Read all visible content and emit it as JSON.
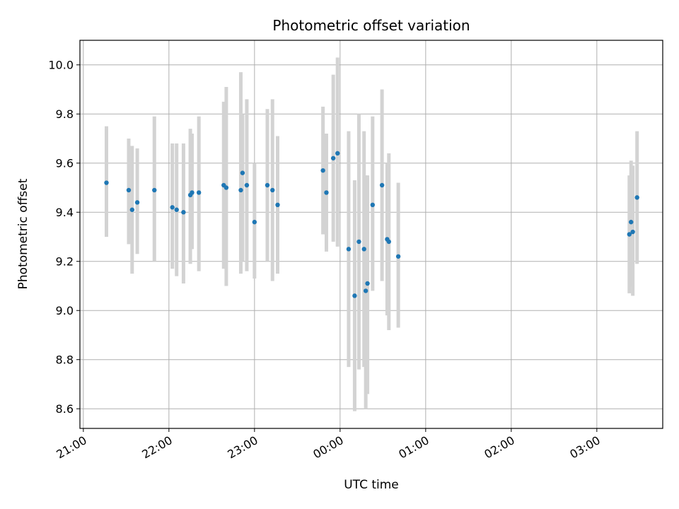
{
  "chart_data": {
    "type": "scatter",
    "title": "Photometric offset variation",
    "xlabel": "UTC time",
    "ylabel": "Photometric offset",
    "x_tick_labels": [
      "21:00",
      "22:00",
      "23:00",
      "00:00",
      "01:00",
      "02:00",
      "03:00"
    ],
    "x_tick_hours": [
      0,
      1,
      2,
      3,
      4,
      5,
      6
    ],
    "xlim_hours_since_21": [
      -0.04,
      6.77
    ],
    "y_ticks": [
      8.6,
      8.8,
      9.0,
      9.2,
      9.4,
      9.6,
      9.8,
      10.0
    ],
    "y_tick_labels": [
      "8.6",
      "8.8",
      "9.0",
      "9.2",
      "9.4",
      "9.6",
      "9.8",
      "10.0"
    ],
    "ylim": [
      8.52,
      10.1
    ],
    "grid": true,
    "colors": {
      "points": "#1f77b4",
      "errorbars": "#d3d3d3",
      "grid": "#b0b0b0"
    },
    "points": [
      {
        "t": 0.27,
        "y": 9.52,
        "lo": 9.3,
        "hi": 9.75
      },
      {
        "t": 0.53,
        "y": 9.49,
        "lo": 9.27,
        "hi": 9.7
      },
      {
        "t": 0.57,
        "y": 9.41,
        "lo": 9.15,
        "hi": 9.67
      },
      {
        "t": 0.63,
        "y": 9.44,
        "lo": 9.23,
        "hi": 9.66
      },
      {
        "t": 0.83,
        "y": 9.49,
        "lo": 9.2,
        "hi": 9.79
      },
      {
        "t": 1.04,
        "y": 9.42,
        "lo": 9.17,
        "hi": 9.68
      },
      {
        "t": 1.09,
        "y": 9.41,
        "lo": 9.14,
        "hi": 9.68
      },
      {
        "t": 1.17,
        "y": 9.4,
        "lo": 9.11,
        "hi": 9.68
      },
      {
        "t": 1.25,
        "y": 9.47,
        "lo": 9.19,
        "hi": 9.74
      },
      {
        "t": 1.27,
        "y": 9.48,
        "lo": 9.25,
        "hi": 9.72
      },
      {
        "t": 1.35,
        "y": 9.48,
        "lo": 9.16,
        "hi": 9.79
      },
      {
        "t": 1.64,
        "y": 9.51,
        "lo": 9.17,
        "hi": 9.85
      },
      {
        "t": 1.67,
        "y": 9.5,
        "lo": 9.1,
        "hi": 9.91
      },
      {
        "t": 1.84,
        "y": 9.49,
        "lo": 9.15,
        "hi": 9.97
      },
      {
        "t": 1.86,
        "y": 9.56,
        "lo": 9.2,
        "hi": 9.8
      },
      {
        "t": 1.91,
        "y": 9.51,
        "lo": 9.16,
        "hi": 9.86
      },
      {
        "t": 2.0,
        "y": 9.36,
        "lo": 9.13,
        "hi": 9.6
      },
      {
        "t": 2.15,
        "y": 9.51,
        "lo": 9.2,
        "hi": 9.82
      },
      {
        "t": 2.21,
        "y": 9.49,
        "lo": 9.12,
        "hi": 9.86
      },
      {
        "t": 2.27,
        "y": 9.43,
        "lo": 9.15,
        "hi": 9.71
      },
      {
        "t": 2.8,
        "y": 9.57,
        "lo": 9.31,
        "hi": 9.83
      },
      {
        "t": 2.84,
        "y": 9.48,
        "lo": 9.24,
        "hi": 9.72
      },
      {
        "t": 2.92,
        "y": 9.62,
        "lo": 9.28,
        "hi": 9.96
      },
      {
        "t": 2.97,
        "y": 9.64,
        "lo": 9.26,
        "hi": 10.03
      },
      {
        "t": 3.1,
        "y": 9.25,
        "lo": 8.77,
        "hi": 9.73
      },
      {
        "t": 3.17,
        "y": 9.06,
        "lo": 8.59,
        "hi": 9.53
      },
      {
        "t": 3.22,
        "y": 9.28,
        "lo": 8.76,
        "hi": 9.8
      },
      {
        "t": 3.28,
        "y": 9.25,
        "lo": 8.77,
        "hi": 9.73
      },
      {
        "t": 3.3,
        "y": 9.08,
        "lo": 8.6,
        "hi": 9.55
      },
      {
        "t": 3.32,
        "y": 9.11,
        "lo": 8.66,
        "hi": 9.55
      },
      {
        "t": 3.38,
        "y": 9.43,
        "lo": 9.08,
        "hi": 9.79
      },
      {
        "t": 3.49,
        "y": 9.51,
        "lo": 9.12,
        "hi": 9.9
      },
      {
        "t": 3.55,
        "y": 9.29,
        "lo": 8.98,
        "hi": 9.6
      },
      {
        "t": 3.57,
        "y": 9.28,
        "lo": 8.92,
        "hi": 9.64
      },
      {
        "t": 3.68,
        "y": 9.22,
        "lo": 8.93,
        "hi": 9.52
      },
      {
        "t": 6.38,
        "y": 9.31,
        "lo": 9.07,
        "hi": 9.55
      },
      {
        "t": 6.4,
        "y": 9.36,
        "lo": 9.1,
        "hi": 9.61
      },
      {
        "t": 6.42,
        "y": 9.32,
        "lo": 9.06,
        "hi": 9.59
      },
      {
        "t": 6.47,
        "y": 9.46,
        "lo": 9.19,
        "hi": 9.73
      }
    ]
  }
}
